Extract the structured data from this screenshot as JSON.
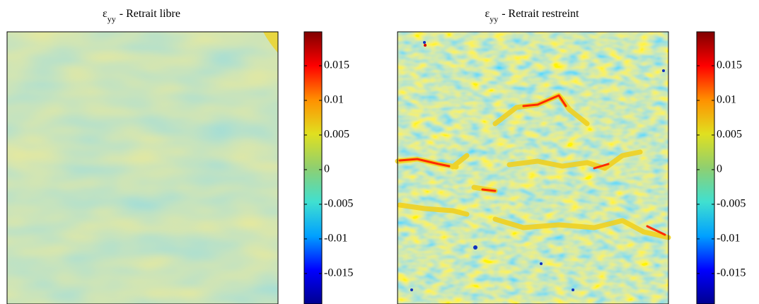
{
  "chart_data": [
    {
      "type": "heatmap",
      "title_symbol": "ε",
      "title_subscript": "yy",
      "title": "- Retrait libre",
      "colormap": [
        "#00008f",
        "#0000ff",
        "#00a0ff",
        "#40e0d0",
        "#8fcf70",
        "#e0e020",
        "#ff9000",
        "#ff0000",
        "#800000"
      ],
      "clim": [
        -0.0194,
        0.0199
      ],
      "cticks": [
        0.015,
        0.01,
        0.005,
        0,
        -0.005,
        -0.01,
        -0.015
      ]
    },
    {
      "type": "heatmap",
      "title_symbol": "ε",
      "title_subscript": "yy",
      "title": "- Retrait restreint",
      "colormap": [
        "#00008f",
        "#0000ff",
        "#00a0ff",
        "#40e0d0",
        "#8fcf70",
        "#e0e020",
        "#ff9000",
        "#ff0000",
        "#800000"
      ],
      "clim": [
        -0.0194,
        0.0199
      ],
      "cticks": [
        0.015,
        0.01,
        0.005,
        0,
        -0.005,
        -0.01,
        -0.015
      ]
    }
  ]
}
